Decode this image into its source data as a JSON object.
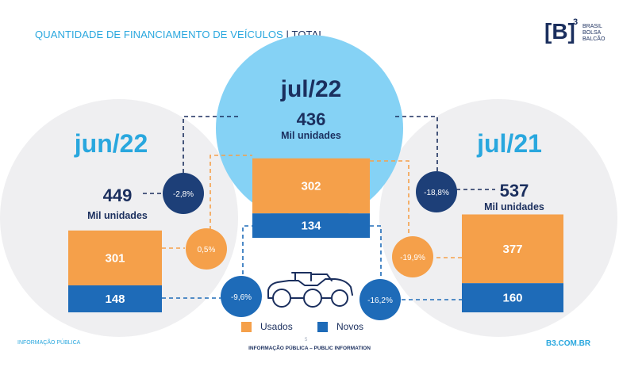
{
  "header": {
    "title": "QUANTIDADE DE FINANCIAMENTO DE VEÍCULOS",
    "separator": "|",
    "subtitle": "TOTAL"
  },
  "logo": {
    "mark": "[B]",
    "superscript": "3",
    "line1": "BRASIL",
    "line2": "BOLSA",
    "line3": "BALCÃO"
  },
  "colors": {
    "usados": "#f5a04a",
    "novos": "#1e6bb8",
    "accent": "#29a7de",
    "navy": "#1b2f5e",
    "circle_center": "#85d2f5",
    "circle_side": "#efeff1",
    "variation_navy": "#1d3f78"
  },
  "chart_data": {
    "type": "bar",
    "stacked": true,
    "unit": "Mil unidades",
    "categories": [
      "jun/22",
      "jul/22",
      "jul/21"
    ],
    "totals": [
      449,
      436,
      537
    ],
    "series": [
      {
        "name": "Usados",
        "values": [
          301,
          302,
          377
        ]
      },
      {
        "name": "Novos",
        "values": [
          148,
          134,
          160
        ]
      }
    ],
    "variations": {
      "total_vs_jun22": "-2,8%",
      "total_vs_jul21": "-18,8%",
      "usados_vs_jun22": "0,5%",
      "usados_vs_jul21": "-19,9%",
      "novos_vs_jun22": "-9,6%",
      "novos_vs_jul21": "-16,2%"
    },
    "legend": [
      "Usados",
      "Novos"
    ]
  },
  "footer": {
    "left": "INFORMAÇÃO PÚBLICA",
    "center": "INFORMAÇÃO PÚBLICA – PUBLIC INFORMATION",
    "page": "5",
    "right": "B3.COM.BR"
  },
  "icons": {
    "vehicles": "vehicles-icon"
  }
}
